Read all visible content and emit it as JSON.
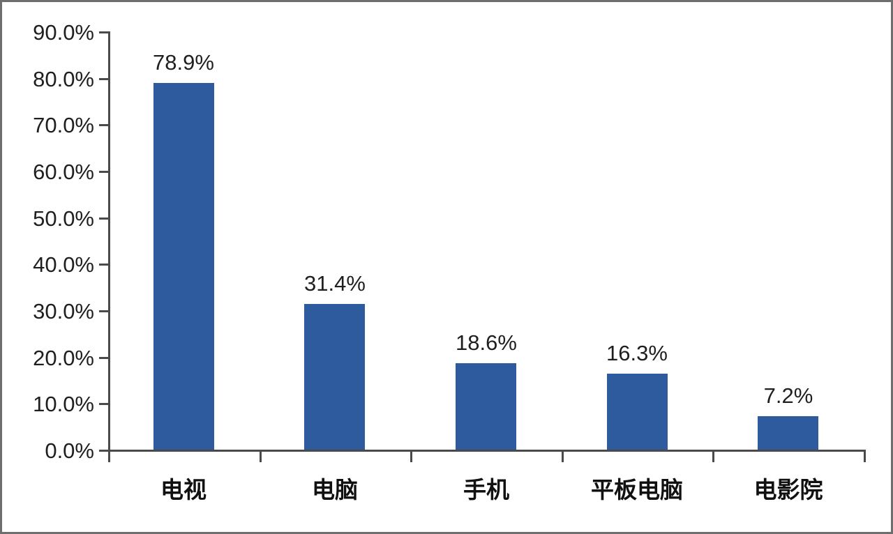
{
  "chart_data": {
    "type": "bar",
    "title": "",
    "categories": [
      "电视",
      "电脑",
      "手机",
      "平板电脑",
      "电影院"
    ],
    "values": [
      78.9,
      31.4,
      18.6,
      16.3,
      7.2
    ],
    "value_labels": [
      "78.9%",
      "31.4%",
      "18.6%",
      "16.3%",
      "7.2%"
    ],
    "y_ticks": [
      {
        "value": 90,
        "label": "90.0%"
      },
      {
        "value": 80,
        "label": "80.0%"
      },
      {
        "value": 70,
        "label": "70.0%"
      },
      {
        "value": 60,
        "label": "60.0%"
      },
      {
        "value": 50,
        "label": "50.0%"
      },
      {
        "value": 40,
        "label": "40.0%"
      },
      {
        "value": 30,
        "label": "30.0%"
      },
      {
        "value": 20,
        "label": "20.0%"
      },
      {
        "value": 10,
        "label": "10.0%"
      },
      {
        "value": 0,
        "label": "0.0%"
      }
    ],
    "ylim": [
      0,
      90
    ],
    "xlabel": "",
    "ylabel": "",
    "grid": false,
    "legend": null,
    "colors": {
      "bar": "#2e5a9e",
      "axis": "#4a4a4a",
      "text": "#1f1f1f",
      "frame_border": "#6e6e6e",
      "background": "#ffffff"
    }
  }
}
